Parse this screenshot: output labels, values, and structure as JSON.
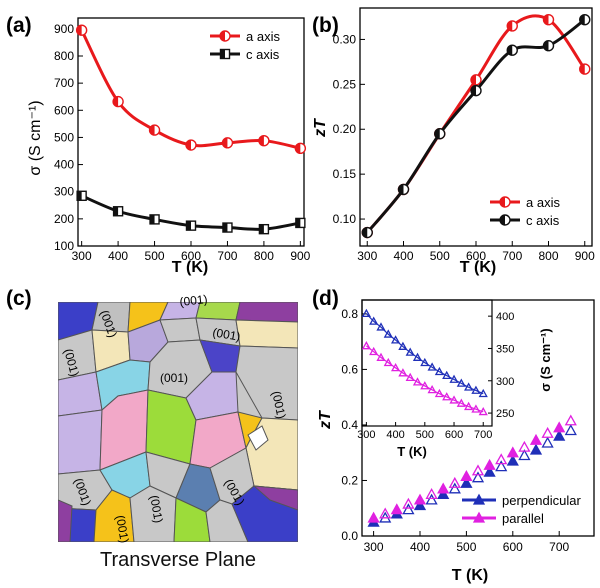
{
  "panels": {
    "a": {
      "label": "(a)"
    },
    "b": {
      "label": "(b)"
    },
    "c": {
      "label": "(c)",
      "caption": "Transverse Plane",
      "grain_labels": [
        "(001)",
        "(001)",
        "(001)",
        "(001)",
        "(001)",
        "(001)",
        "(001)",
        "(001)",
        "(001)",
        "(001)"
      ]
    },
    "d": {
      "label": "(d)"
    }
  },
  "chart_data": [
    {
      "id": "a",
      "type": "line",
      "xlabel": "T (K)",
      "ylabel": "σ (S cm⁻¹)",
      "x_ticks": [
        "300",
        "400",
        "500",
        "600",
        "700",
        "800",
        "900"
      ],
      "y_ticks": [
        "100",
        "200",
        "300",
        "400",
        "500",
        "600",
        "700",
        "800",
        "900"
      ],
      "xlim": [
        290,
        910
      ],
      "ylim": [
        100,
        940
      ],
      "legend_position": "top-right",
      "series": [
        {
          "name": "a axis",
          "color": "#e8191c",
          "marker": "half-filled-circle",
          "x": [
            300,
            400,
            500,
            600,
            700,
            800,
            900
          ],
          "y": [
            895,
            632,
            527,
            472,
            480,
            488,
            460
          ]
        },
        {
          "name": "c axis",
          "color": "#111111",
          "marker": "half-filled-square",
          "x": [
            300,
            400,
            500,
            600,
            700,
            800,
            900
          ],
          "y": [
            285,
            228,
            198,
            175,
            168,
            162,
            185
          ]
        }
      ]
    },
    {
      "id": "b",
      "type": "line",
      "xlabel": "T (K)",
      "ylabel": "zT",
      "x_ticks": [
        "300",
        "400",
        "500",
        "600",
        "700",
        "800",
        "900"
      ],
      "y_ticks": [
        "0.10",
        "0.15",
        "0.20",
        "0.25",
        "0.30"
      ],
      "xlim": [
        280,
        920
      ],
      "ylim": [
        0.07,
        0.335
      ],
      "legend_position": "bottom-right",
      "series": [
        {
          "name": "a axis",
          "color": "#e8191c",
          "marker": "half-filled-circle",
          "x": [
            300,
            400,
            500,
            600,
            700,
            800,
            900
          ],
          "y": [
            0.085,
            0.133,
            0.195,
            0.255,
            0.315,
            0.322,
            0.267
          ]
        },
        {
          "name": "c axis",
          "color": "#111111",
          "marker": "half-filled-circle",
          "x": [
            300,
            400,
            500,
            600,
            700,
            800,
            900
          ],
          "y": [
            0.085,
            0.133,
            0.195,
            0.243,
            0.288,
            0.293,
            0.322
          ]
        }
      ]
    },
    {
      "id": "d",
      "type": "scatter",
      "xlabel": "T (K)",
      "ylabel": "zT",
      "x_ticks": [
        "300",
        "400",
        "500",
        "600",
        "700"
      ],
      "y_ticks": [
        "0.0",
        "0.2",
        "0.4",
        "0.6",
        "0.8"
      ],
      "xlim": [
        275,
        775
      ],
      "ylim": [
        0,
        0.85
      ],
      "legend_position": "bottom-right",
      "series": [
        {
          "name": "perpendicular",
          "color": "#1f2fb8",
          "marker": "triangle",
          "x": [
            300,
            325,
            350,
            375,
            400,
            425,
            450,
            475,
            500,
            525,
            550,
            575,
            600,
            625,
            650,
            675,
            700,
            725
          ],
          "y": [
            0.05,
            0.065,
            0.08,
            0.095,
            0.11,
            0.13,
            0.15,
            0.17,
            0.19,
            0.21,
            0.23,
            0.25,
            0.27,
            0.29,
            0.31,
            0.335,
            0.36,
            0.38
          ]
        },
        {
          "name": "parallel",
          "color": "#e020e0",
          "marker": "triangle",
          "x": [
            300,
            325,
            350,
            375,
            400,
            425,
            450,
            475,
            500,
            525,
            550,
            575,
            600,
            625,
            650,
            675,
            700,
            725
          ],
          "y": [
            0.065,
            0.08,
            0.095,
            0.115,
            0.13,
            0.15,
            0.17,
            0.19,
            0.215,
            0.235,
            0.255,
            0.275,
            0.3,
            0.32,
            0.345,
            0.37,
            0.39,
            0.415
          ]
        }
      ],
      "inset": {
        "xlabel": "T (K)",
        "ylabel_right": "σ (S cm⁻¹)",
        "x_ticks": [
          "300",
          "400",
          "500",
          "600",
          "700"
        ],
        "y_ticks": [
          "250",
          "300",
          "350",
          "400"
        ],
        "xlim": [
          285,
          730
        ],
        "ylim": [
          230,
          425
        ],
        "series": [
          {
            "name": "perpendicular",
            "color": "#1f2fb8",
            "x": [
              300,
              325,
              350,
              375,
              400,
              425,
              450,
              475,
              500,
              525,
              550,
              575,
              600,
              625,
              650,
              675,
              700
            ],
            "y": [
              404,
              392,
              383,
              372,
              363,
              353,
              344,
              336,
              328,
              321,
              314,
              308,
              302,
              296,
              290,
              285,
              280
            ]
          },
          {
            "name": "parallel",
            "color": "#e020e0",
            "x": [
              300,
              325,
              350,
              375,
              400,
              425,
              450,
              475,
              500,
              525,
              550,
              575,
              600,
              625,
              650,
              675,
              700
            ],
            "y": [
              354,
              345,
              336,
              328,
              320,
              312,
              305,
              298,
              292,
              286,
              280,
              275,
              270,
              265,
              260,
              256,
              252
            ]
          }
        ]
      }
    }
  ]
}
